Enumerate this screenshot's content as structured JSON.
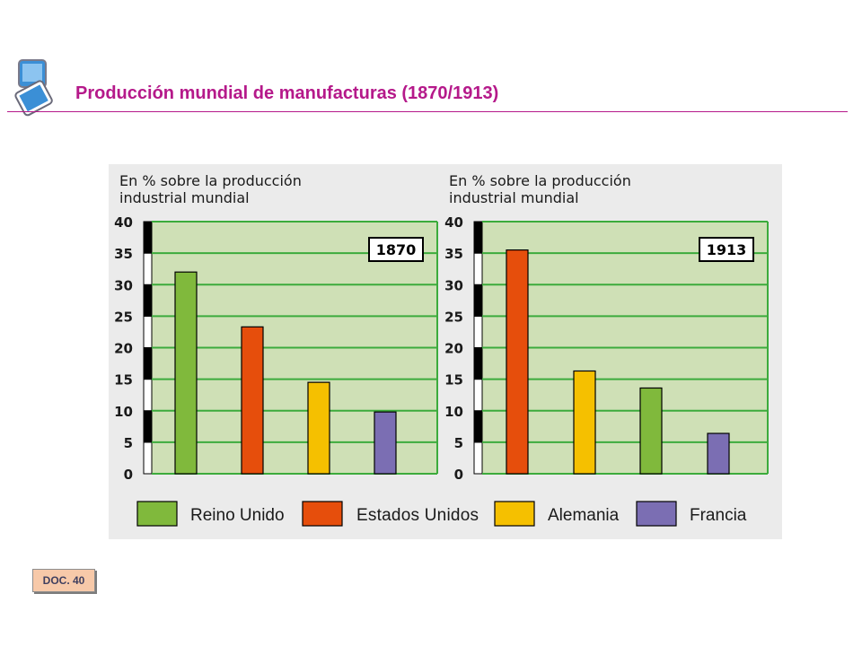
{
  "header": {
    "title": "Producción mundial de manufacturas (1870/1913)"
  },
  "doc_badge": "DOC. 40",
  "colors": {
    "title": "#b5198a",
    "plot_background": "#cfe0b6",
    "grid": "#3cab3c",
    "panel_background": "#ebebeb",
    "reino_unido": "#80b93c",
    "estados_unidos": "#e64e0c",
    "alemania": "#f5c000",
    "francia": "#7b6eb3"
  },
  "chart_data": [
    {
      "type": "bar",
      "title": "1870",
      "ylabel": "En % sobre la producción industrial mundial",
      "ylim": [
        0,
        40
      ],
      "yticks": [
        "0",
        "5",
        "10",
        "15",
        "20",
        "25",
        "30",
        "35",
        "40"
      ],
      "grid": true,
      "categories": [
        "Reino Unido",
        "Estados Unidos",
        "Alemania",
        "Francia"
      ],
      "values": [
        32,
        23.3,
        14.5,
        9.8
      ],
      "colors": [
        "#80b93c",
        "#e64e0c",
        "#f5c000",
        "#7b6eb3"
      ]
    },
    {
      "type": "bar",
      "title": "1913",
      "ylabel": "En % sobre la producción industrial mundial",
      "ylim": [
        0,
        40
      ],
      "yticks": [
        "0",
        "5",
        "10",
        "15",
        "20",
        "25",
        "30",
        "35",
        "40"
      ],
      "grid": true,
      "categories": [
        "Estados Unidos",
        "Alemania",
        "Reino Unido",
        "Francia"
      ],
      "values": [
        35.5,
        16.3,
        13.6,
        6.4
      ],
      "colors": [
        "#e64e0c",
        "#f5c000",
        "#80b93c",
        "#7b6eb3"
      ]
    }
  ],
  "legend": {
    "position": "bottom",
    "items": [
      {
        "label": "Reino Unido",
        "color": "#80b93c"
      },
      {
        "label": "Estados Unidos",
        "color": "#e64e0c"
      },
      {
        "label": "Alemania",
        "color": "#f5c000"
      },
      {
        "label": "Francia",
        "color": "#7b6eb3"
      }
    ]
  }
}
